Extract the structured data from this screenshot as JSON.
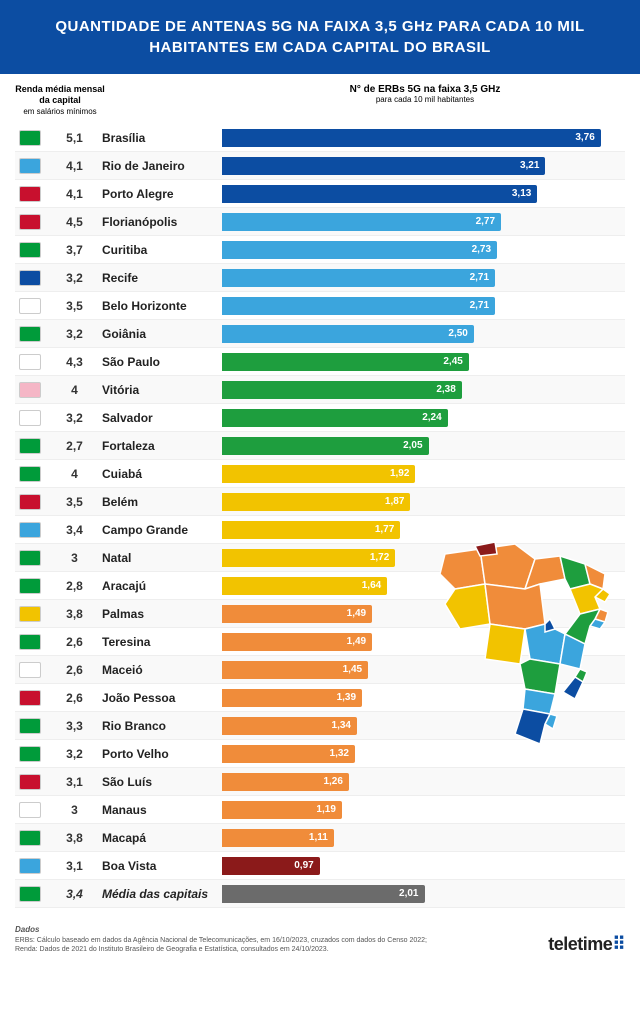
{
  "title": "QUANTIDADE DE ANTENAS 5G NA FAIXA 3,5 GHz PARA CADA 10 MIL HABITANTES EM CADA CAPITAL DO BRASIL",
  "income_header": "Renda média mensal da capital",
  "income_sub": "em salários mínimos",
  "bar_header": "N° de ERBs 5G na faixa 3,5 GHz",
  "bar_sub": "para cada 10 mil habitantes",
  "max_value": 4.0,
  "colors": {
    "tier1": "#0c4da2",
    "tier2": "#3ba5dd",
    "tier3": "#1e9e3e",
    "tier4": "#f2c300",
    "tier5": "#f08c3a",
    "tier6": "#8b1a1a",
    "avg": "#6b6b6b"
  },
  "rows": [
    {
      "income": "5,1",
      "city": "Brasília",
      "value": 3.76,
      "label": "3,76",
      "color": "#0c4da2",
      "flag": "#009b3a"
    },
    {
      "income": "4,1",
      "city": "Rio de Janeiro",
      "value": 3.21,
      "label": "3,21",
      "color": "#0c4da2",
      "flag": "#3ba5dd"
    },
    {
      "income": "4,1",
      "city": "Porto Alegre",
      "value": 3.13,
      "label": "3,13",
      "color": "#0c4da2",
      "flag": "#c8102e"
    },
    {
      "income": "4,5",
      "city": "Florianópolis",
      "value": 2.77,
      "label": "2,77",
      "color": "#3ba5dd",
      "flag": "#c8102e"
    },
    {
      "income": "3,7",
      "city": "Curitiba",
      "value": 2.73,
      "label": "2,73",
      "color": "#3ba5dd",
      "flag": "#009b3a"
    },
    {
      "income": "3,2",
      "city": "Recife",
      "value": 2.71,
      "label": "2,71",
      "color": "#3ba5dd",
      "flag": "#0c4da2"
    },
    {
      "income": "3,5",
      "city": "Belo Horizonte",
      "value": 2.71,
      "label": "2,71",
      "color": "#3ba5dd",
      "flag": "#ffffff"
    },
    {
      "income": "3,2",
      "city": "Goiânia",
      "value": 2.5,
      "label": "2,50",
      "color": "#3ba5dd",
      "flag": "#009b3a"
    },
    {
      "income": "4,3",
      "city": "São Paulo",
      "value": 2.45,
      "label": "2,45",
      "color": "#1e9e3e",
      "flag": "#ffffff"
    },
    {
      "income": "4",
      "city": "Vitória",
      "value": 2.38,
      "label": "2,38",
      "color": "#1e9e3e",
      "flag": "#f5b6c6"
    },
    {
      "income": "3,2",
      "city": "Salvador",
      "value": 2.24,
      "label": "2,24",
      "color": "#1e9e3e",
      "flag": "#ffffff"
    },
    {
      "income": "2,7",
      "city": "Fortaleza",
      "value": 2.05,
      "label": "2,05",
      "color": "#1e9e3e",
      "flag": "#009b3a"
    },
    {
      "income": "4",
      "city": "Cuiabá",
      "value": 1.92,
      "label": "1,92",
      "color": "#f2c300",
      "flag": "#009b3a"
    },
    {
      "income": "3,5",
      "city": "Belém",
      "value": 1.87,
      "label": "1,87",
      "color": "#f2c300",
      "flag": "#c8102e"
    },
    {
      "income": "3,4",
      "city": "Campo Grande",
      "value": 1.77,
      "label": "1,77",
      "color": "#f2c300",
      "flag": "#3ba5dd"
    },
    {
      "income": "3",
      "city": "Natal",
      "value": 1.72,
      "label": "1,72",
      "color": "#f2c300",
      "flag": "#009b3a"
    },
    {
      "income": "2,8",
      "city": "Aracajú",
      "value": 1.64,
      "label": "1,64",
      "color": "#f2c300",
      "flag": "#009b3a"
    },
    {
      "income": "3,8",
      "city": "Palmas",
      "value": 1.49,
      "label": "1,49",
      "color": "#f08c3a",
      "flag": "#f2c300"
    },
    {
      "income": "2,6",
      "city": "Teresina",
      "value": 1.49,
      "label": "1,49",
      "color": "#f08c3a",
      "flag": "#009b3a"
    },
    {
      "income": "2,6",
      "city": "Maceió",
      "value": 1.45,
      "label": "1,45",
      "color": "#f08c3a",
      "flag": "#ffffff"
    },
    {
      "income": "2,6",
      "city": "João Pessoa",
      "value": 1.39,
      "label": "1,39",
      "color": "#f08c3a",
      "flag": "#c8102e"
    },
    {
      "income": "3,3",
      "city": "Rio Branco",
      "value": 1.34,
      "label": "1,34",
      "color": "#f08c3a",
      "flag": "#009b3a"
    },
    {
      "income": "3,2",
      "city": "Porto Velho",
      "value": 1.32,
      "label": "1,32",
      "color": "#f08c3a",
      "flag": "#009b3a"
    },
    {
      "income": "3,1",
      "city": "São Luís",
      "value": 1.26,
      "label": "1,26",
      "color": "#f08c3a",
      "flag": "#c8102e"
    },
    {
      "income": "3",
      "city": "Manaus",
      "value": 1.19,
      "label": "1,19",
      "color": "#f08c3a",
      "flag": "#ffffff"
    },
    {
      "income": "3,8",
      "city": "Macapá",
      "value": 1.11,
      "label": "1,11",
      "color": "#f08c3a",
      "flag": "#009b3a"
    },
    {
      "income": "3,1",
      "city": "Boa Vista",
      "value": 0.97,
      "label": "0,97",
      "color": "#8b1a1a",
      "flag": "#3ba5dd"
    },
    {
      "income": "3,4",
      "city": "Média das capitais",
      "value": 2.01,
      "label": "2,01",
      "color": "#6b6b6b",
      "flag": "#009b3a",
      "italic": true
    }
  ],
  "sources_header": "Dados",
  "sources_line1": "ERBs: Cálculo baseado em dados da Agência Nacional de Telecomunicações, em 16/10/2023, cruzados com dados do Censo 2022;",
  "sources_line2": "Renda: Dados de 2021 do Instituto Brasileiro de Geografia e Estatística, consultados em 24/10/2023.",
  "logo_text": "teletime"
}
